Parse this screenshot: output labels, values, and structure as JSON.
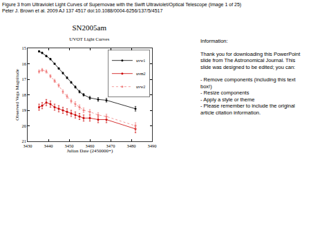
{
  "slide": {
    "caption": [
      "Figure 3 from Ultraviolet Light Curves of Supernovae with the Swift Ultraviolet/Optical Telescope (Image 1 of 25)",
      "Peter J. Brown et al. 2009 AJ 137 4517 doi:10.1088/0004-6256/137/5/4517"
    ],
    "info": [
      [
        "Information:"
      ],
      [
        "Thank you for downloading this PowerPoint slide from The Astronomical Journal.  This slide was designed to be edited; you can:"
      ],
      [
        "- Remove components (including this text box!)",
        "- Resize components",
        "- Apply a style or theme",
        "- Please remember to include the original article citation information."
      ]
    ]
  },
  "chart_data": {
    "type": "line",
    "title": "SN2005am",
    "subtitle": "UVOT Light Curves",
    "x_label": "Julian Date (2450000+)",
    "y_label": "Observed Vega Magnitude",
    "x": [
      3435.5,
      3437,
      3439,
      3441,
      3443,
      3445,
      3447,
      3449,
      3451,
      3453,
      3455,
      3457,
      3460,
      3464,
      3468,
      3482
    ],
    "series": [
      {
        "name": "uvw1",
        "color": "#000000",
        "marker": "circle",
        "line_style": "solid",
        "values": [
          15.2,
          15.3,
          15.5,
          15.7,
          16.0,
          16.3,
          16.6,
          16.9,
          17.2,
          17.5,
          17.8,
          18.0,
          18.2,
          18.3,
          18.35,
          18.9
        ],
        "errors": [
          0.05,
          0.05,
          0.05,
          0.05,
          0.05,
          0.05,
          0.05,
          0.06,
          0.06,
          0.07,
          0.08,
          0.08,
          0.1,
          0.12,
          0.12,
          0.15
        ]
      },
      {
        "name": "uvm2",
        "color": "#cc0000",
        "marker": "circle",
        "line_style": "solid",
        "values": [
          18.8,
          18.7,
          18.5,
          18.6,
          18.8,
          18.9,
          19.0,
          19.1,
          19.2,
          19.3,
          19.4,
          19.5,
          19.5,
          19.6,
          19.6,
          20.2
        ],
        "errors": [
          0.2,
          0.2,
          0.2,
          0.2,
          0.2,
          0.2,
          0.2,
          0.2,
          0.2,
          0.2,
          0.2,
          0.2,
          0.2,
          0.2,
          0.2,
          0.25
        ]
      },
      {
        "name": "uvw2",
        "color": "#f08080",
        "marker": "circle",
        "line_style": "dotted",
        "values": [
          16.5,
          16.4,
          16.5,
          16.8,
          17.1,
          17.4,
          17.8,
          18.1,
          18.4,
          18.6,
          18.8,
          19.0,
          19.1,
          19.3,
          19.4,
          20.0
        ],
        "errors": [
          0.1,
          0.1,
          0.1,
          0.1,
          0.1,
          0.1,
          0.12,
          0.12,
          0.12,
          0.15,
          0.15,
          0.15,
          0.15,
          0.15,
          0.15,
          0.2
        ]
      }
    ],
    "xlim": [
      3430,
      3490
    ],
    "xticks": [
      3430,
      3440,
      3450,
      3460,
      3470,
      3480,
      3490
    ],
    "ylim": [
      21,
      15
    ],
    "yticks": [
      15,
      16,
      17,
      18,
      19,
      20,
      21
    ],
    "grid": false,
    "legend": "top right"
  }
}
